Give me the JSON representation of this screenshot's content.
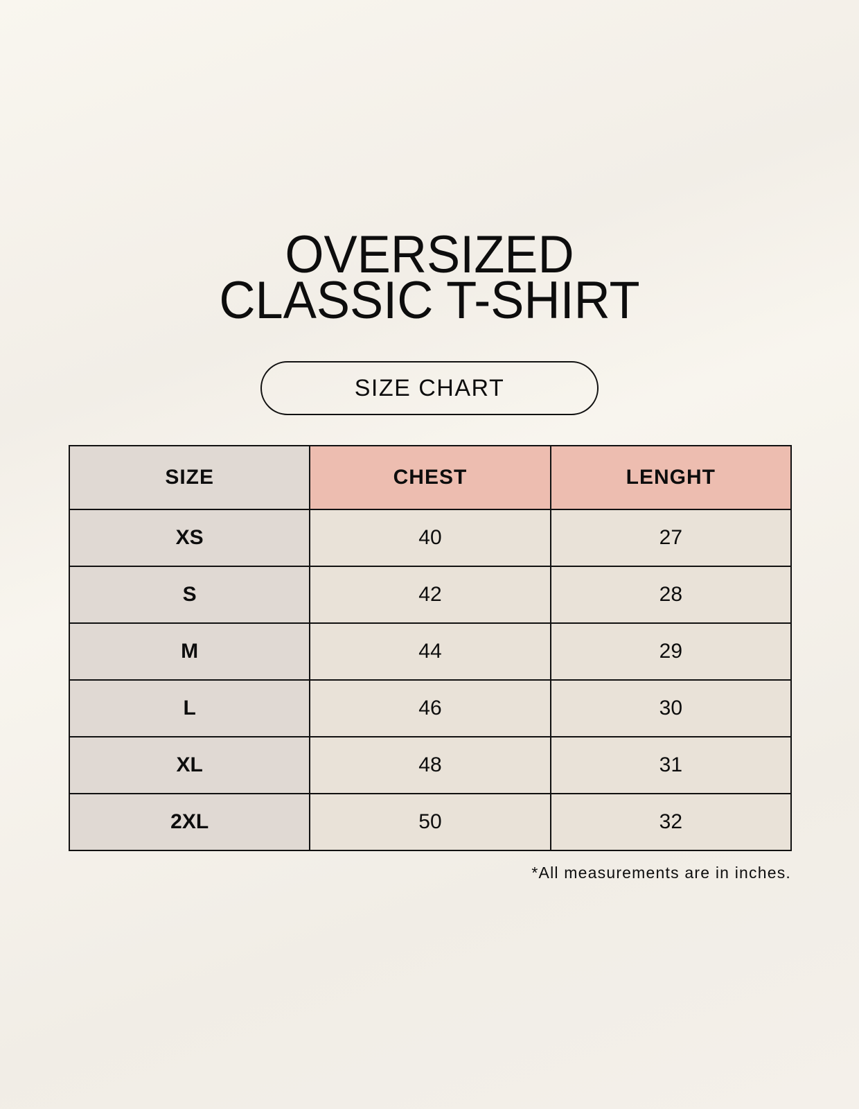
{
  "title": {
    "line1": "OVERSIZED",
    "line2": "CLASSIC T-SHIRT"
  },
  "subtitle": "SIZE CHART",
  "table": {
    "headers": [
      "SIZE",
      "CHEST",
      "LENGHT"
    ],
    "rows": [
      [
        "XS",
        "40",
        "27"
      ],
      [
        "S",
        "42",
        "28"
      ],
      [
        "M",
        "44",
        "29"
      ],
      [
        "L",
        "46",
        "30"
      ],
      [
        "XL",
        "48",
        "31"
      ],
      [
        "2XL",
        "50",
        "32"
      ]
    ]
  },
  "note": "*All measurements are in inches.",
  "colors": {
    "size_column": "#e0d9d3",
    "header_accent": "#edbdb0",
    "value_cells": "#e9e2d8"
  }
}
